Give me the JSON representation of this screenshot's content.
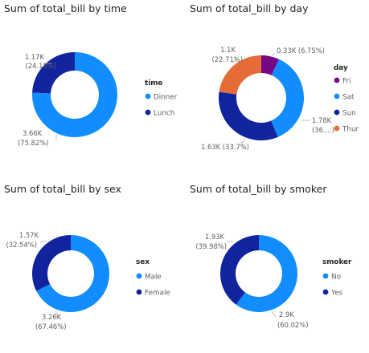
{
  "chart_data": [
    {
      "type": "pie",
      "title": "Sum of total_bill by time",
      "legend_title": "time",
      "legend_position": "right",
      "slices": [
        {
          "name": "Dinner",
          "value": 3660,
          "label_value": "3.66K",
          "label_pct": "(75.82%)",
          "color": "#118DFF"
        },
        {
          "name": "Lunch",
          "value": 1170,
          "label_value": "1.17K",
          "label_pct": "(24.18%)",
          "color": "#12239E"
        }
      ]
    },
    {
      "type": "pie",
      "title": "Sum of total_bill by day",
      "legend_title": "day",
      "legend_position": "right",
      "slices": [
        {
          "name": "Fri",
          "value": 330,
          "label_value": "0.33K (6.75%)",
          "label_pct": "",
          "color": "#750985"
        },
        {
          "name": "Sat",
          "value": 1780,
          "label_value": "1.78K",
          "label_pct": "(36....)",
          "color": "#118DFF"
        },
        {
          "name": "Sun",
          "value": 1630,
          "label_value": "1.63K (33.7%)",
          "label_pct": "",
          "color": "#12239E"
        },
        {
          "name": "Thur",
          "value": 1100,
          "label_value": "1.1K",
          "label_pct": "(22.71%)",
          "color": "#E66C37"
        }
      ]
    },
    {
      "type": "pie",
      "title": "Sum of total_bill by sex",
      "legend_title": "sex",
      "legend_position": "right",
      "slices": [
        {
          "name": "Male",
          "value": 3260,
          "label_value": "3.26K",
          "label_pct": "(67.46%)",
          "color": "#118DFF"
        },
        {
          "name": "Female",
          "value": 1570,
          "label_value": "1.57K",
          "label_pct": "(32.54%)",
          "color": "#12239E"
        }
      ]
    },
    {
      "type": "pie",
      "title": "Sum of total_bill by smoker",
      "legend_title": "smoker",
      "legend_position": "right",
      "slices": [
        {
          "name": "No",
          "value": 2900,
          "label_value": "2.9K",
          "label_pct": "(60.02%)",
          "color": "#118DFF"
        },
        {
          "name": "Yes",
          "value": 1930,
          "label_value": "1.93K",
          "label_pct": "(39.98%)",
          "color": "#12239E"
        }
      ]
    }
  ]
}
